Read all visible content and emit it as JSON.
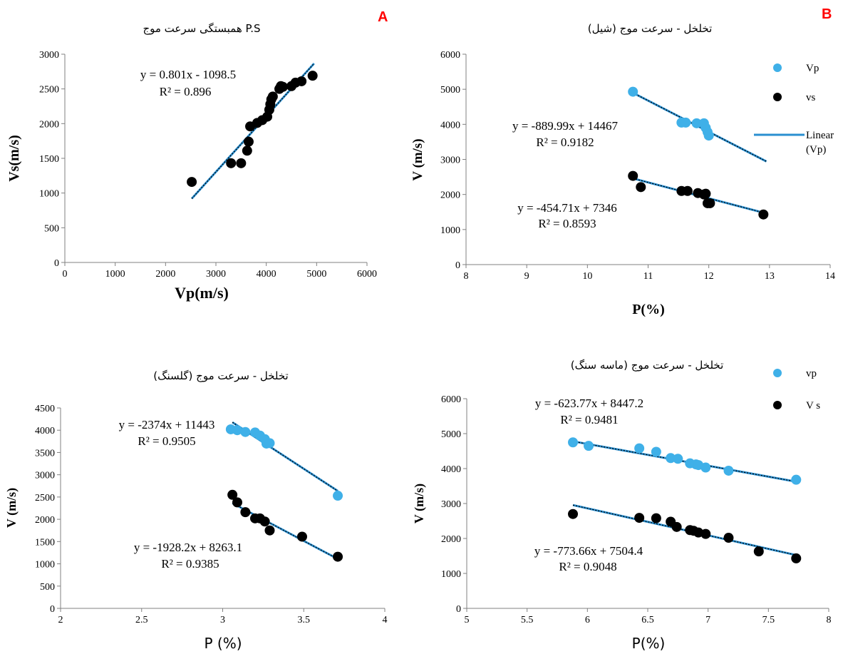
{
  "panel_labels": {
    "A": "A",
    "B": "B"
  },
  "colors": {
    "light_blue": "#3fb0e8",
    "black": "#000000",
    "trend_blue": "#2a8fd0",
    "axis": "#808080",
    "letter_red": "#ff0000"
  },
  "chart_data": [
    {
      "id": "A",
      "type": "scatter",
      "title": "همبستگی سرعت موج P.S",
      "xlabel": "Vp(m/s)",
      "ylabel": "Vs(m/s)",
      "xlim": [
        0,
        6000
      ],
      "ylim": [
        0,
        3000
      ],
      "xticks": [
        0,
        1000,
        2000,
        3000,
        4000,
        5000,
        6000
      ],
      "yticks": [
        0,
        500,
        1000,
        1500,
        2000,
        2500,
        3000
      ],
      "series": [
        {
          "color": "#000000",
          "points": [
            [
              2520,
              1160
            ],
            [
              3300,
              1430
            ],
            [
              3500,
              1430
            ],
            [
              3620,
              1610
            ],
            [
              3650,
              1740
            ],
            [
              3680,
              1960
            ],
            [
              3820,
              2010
            ],
            [
              3920,
              2050
            ],
            [
              4020,
              2100
            ],
            [
              4060,
              2200
            ],
            [
              4080,
              2280
            ],
            [
              4100,
              2350
            ],
            [
              4130,
              2390
            ],
            [
              4260,
              2500
            ],
            [
              4290,
              2540
            ],
            [
              4330,
              2530
            ],
            [
              4500,
              2540
            ],
            [
              4580,
              2590
            ],
            [
              4700,
              2610
            ],
            [
              4920,
              2690
            ]
          ],
          "trend": {
            "slope": 0.801,
            "intercept": -1098.5,
            "x_range": [
              2520,
              4950
            ]
          },
          "equation": "y = 0.801x - 1098.5",
          "r2": "R² = 0.896"
        }
      ]
    },
    {
      "id": "B",
      "type": "scatter",
      "title": "تخلخل - سرعت موج (شیل)",
      "xlabel": "P(%)",
      "ylabel": "V (m/s)",
      "xlim": [
        8,
        14
      ],
      "ylim": [
        0,
        6000
      ],
      "xticks": [
        8,
        9,
        10,
        11,
        12,
        13,
        14
      ],
      "yticks": [
        0,
        1000,
        2000,
        3000,
        4000,
        5000,
        6000
      ],
      "legend": [
        {
          "label": "Vp",
          "kind": "marker",
          "color": "#3fb0e8"
        },
        {
          "label": "vs",
          "kind": "marker",
          "color": "#000000"
        },
        {
          "label": "Linear (Vp)",
          "kind": "line",
          "color": "#2a8fd0"
        }
      ],
      "series": [
        {
          "name": "Vp",
          "color": "#3fb0e8",
          "points": [
            [
              10.75,
              4930
            ],
            [
              11.55,
              4050
            ],
            [
              11.62,
              4050
            ],
            [
              11.8,
              4030
            ],
            [
              11.92,
              4030
            ],
            [
              11.95,
              3900
            ],
            [
              11.98,
              3780
            ],
            [
              12.0,
              3680
            ]
          ],
          "trend": {
            "slope": -889.99,
            "intercept": 14467,
            "x_range": [
              10.75,
              12.95
            ]
          },
          "equation": "y = -889.99x + 14467",
          "r2": "R² = 0.9182"
        },
        {
          "name": "vs",
          "color": "#000000",
          "points": [
            [
              10.75,
              2530
            ],
            [
              10.88,
              2210
            ],
            [
              11.55,
              2100
            ],
            [
              11.65,
              2100
            ],
            [
              11.82,
              2040
            ],
            [
              11.92,
              2000
            ],
            [
              11.95,
              2020
            ],
            [
              11.98,
              1750
            ],
            [
              12.02,
              1750
            ],
            [
              12.9,
              1430
            ]
          ],
          "trend": {
            "slope": -454.71,
            "intercept": 7346,
            "x_range": [
              10.75,
              12.95
            ]
          },
          "equation": "y = -454.71x + 7346",
          "r2": "R² = 0.8593"
        }
      ]
    },
    {
      "id": "C",
      "type": "scatter",
      "title": "تخلخل - سرعت موج (گلسنگ)",
      "xlabel": "P (%)",
      "ylabel": "V (m/s)",
      "xlim": [
        2,
        4
      ],
      "ylim": [
        0,
        4500
      ],
      "xticks": [
        2,
        2.5,
        3,
        3.5,
        4
      ],
      "yticks": [
        0,
        500,
        1000,
        1500,
        2000,
        2500,
        3000,
        3500,
        4000,
        4500
      ],
      "series": [
        {
          "color": "#3fb0e8",
          "points": [
            [
              3.05,
              4020
            ],
            [
              3.09,
              4000
            ],
            [
              3.14,
              3960
            ],
            [
              3.2,
              3950
            ],
            [
              3.23,
              3880
            ],
            [
              3.26,
              3800
            ],
            [
              3.27,
              3700
            ],
            [
              3.29,
              3710
            ],
            [
              3.71,
              2530
            ]
          ],
          "trend": {
            "slope": -2374,
            "intercept": 11443,
            "x_range": [
              3.06,
              3.71
            ]
          },
          "equation": "y = -2374x + 11443",
          "r2": "R² = 0.9505"
        },
        {
          "color": "#000000",
          "points": [
            [
              3.06,
              2550
            ],
            [
              3.09,
              2380
            ],
            [
              3.14,
              2160
            ],
            [
              3.2,
              2020
            ],
            [
              3.23,
              2020
            ],
            [
              3.26,
              1950
            ],
            [
              3.29,
              1750
            ],
            [
              3.49,
              1610
            ],
            [
              3.71,
              1160
            ]
          ],
          "trend": {
            "slope": -1928.2,
            "intercept": 8263.1,
            "x_range": [
              3.06,
              3.71
            ]
          },
          "equation": "y = -1928.2x + 8263.1",
          "r2": "R² = 0.9385"
        }
      ]
    },
    {
      "id": "D",
      "type": "scatter",
      "title": "تخلخل - سرعت موج (ماسه سنگ)",
      "xlabel": "P(%)",
      "ylabel": "V (m/s)",
      "xlim": [
        5,
        8
      ],
      "ylim": [
        0,
        6000
      ],
      "xticks": [
        5,
        5.5,
        6,
        6.5,
        7,
        7.5,
        8
      ],
      "yticks": [
        0,
        1000,
        2000,
        3000,
        4000,
        5000,
        6000
      ],
      "legend": [
        {
          "label": "vp",
          "kind": "marker",
          "color": "#3fb0e8"
        },
        {
          "label": "V s",
          "kind": "marker",
          "color": "#000000"
        }
      ],
      "series": [
        {
          "name": "vp",
          "color": "#3fb0e8",
          "points": [
            [
              5.88,
              4750
            ],
            [
              6.01,
              4650
            ],
            [
              6.43,
              4580
            ],
            [
              6.57,
              4480
            ],
            [
              6.69,
              4300
            ],
            [
              6.75,
              4280
            ],
            [
              6.85,
              4150
            ],
            [
              6.9,
              4120
            ],
            [
              6.92,
              4100
            ],
            [
              6.98,
              4030
            ],
            [
              7.17,
              3940
            ],
            [
              7.73,
              3680
            ]
          ],
          "trend": {
            "slope": -623.77,
            "intercept": 8447.2,
            "x_range": [
              5.88,
              7.73
            ]
          },
          "equation": "y = -623.77x + 8447.2",
          "r2": "R² = 0.9481"
        },
        {
          "name": "V s",
          "color": "#000000",
          "points": [
            [
              5.88,
              2700
            ],
            [
              6.43,
              2590
            ],
            [
              6.57,
              2580
            ],
            [
              6.69,
              2480
            ],
            [
              6.74,
              2330
            ],
            [
              6.85,
              2240
            ],
            [
              6.88,
              2220
            ],
            [
              6.92,
              2170
            ],
            [
              6.98,
              2130
            ],
            [
              7.17,
              2020
            ],
            [
              7.42,
              1630
            ],
            [
              7.73,
              1430
            ]
          ],
          "trend": {
            "slope": -773.66,
            "intercept": 7504.4,
            "x_range": [
              5.88,
              7.73
            ]
          },
          "equation": "y = -773.66x + 7504.4",
          "r2": "R² = 0.9048"
        }
      ]
    }
  ]
}
